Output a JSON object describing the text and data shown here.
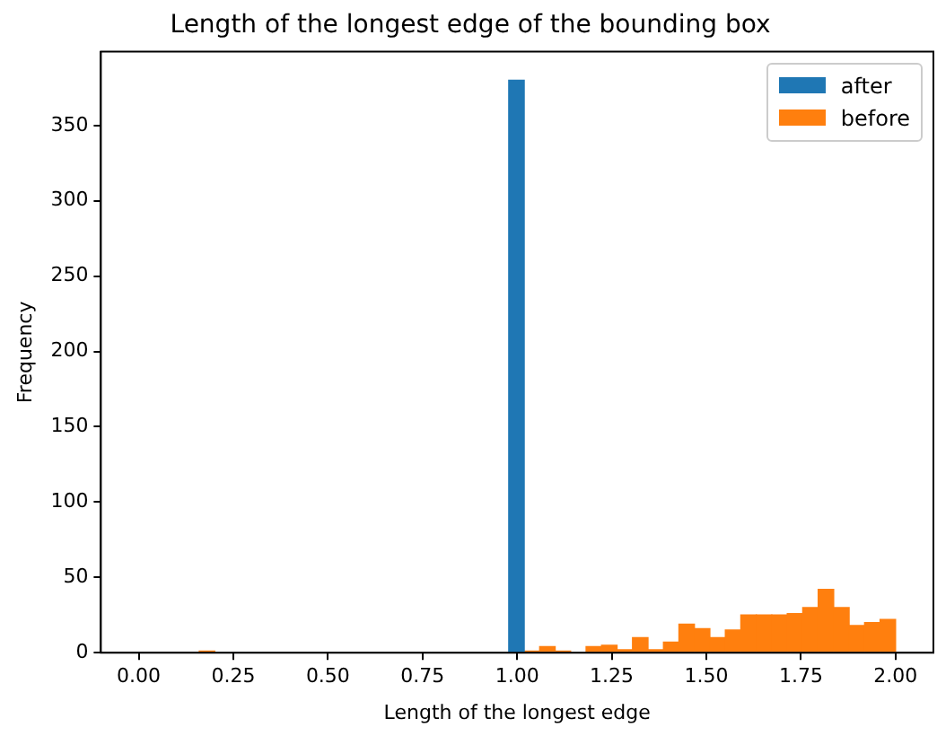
{
  "chart_data": {
    "type": "histogram",
    "title": "Length of the longest edge of the bounding box",
    "xlabel": "Length of the longest edge",
    "ylabel": "Frequency",
    "bins": [
      0.16,
      0.2009,
      0.2418,
      0.2827,
      0.3236,
      0.3644,
      0.4053,
      0.4462,
      0.4871,
      0.528,
      0.5689,
      0.6098,
      0.6507,
      0.6916,
      0.7324,
      0.7733,
      0.8142,
      0.8551,
      0.896,
      0.9369,
      0.9778,
      1.0187,
      1.0596,
      1.1004,
      1.1413,
      1.1822,
      1.2231,
      1.264,
      1.3049,
      1.3458,
      1.3867,
      1.4276,
      1.4684,
      1.5093,
      1.5502,
      1.5911,
      1.632,
      1.6729,
      1.7138,
      1.7547,
      1.7956,
      1.8364,
      1.8773,
      1.9182,
      1.9591,
      2.0
    ],
    "series": [
      {
        "name": "after",
        "color": "#1f77b4",
        "values": [
          0,
          0,
          0,
          0,
          0,
          0,
          0,
          0,
          0,
          0,
          0,
          0,
          0,
          0,
          0,
          0,
          0,
          0,
          0,
          0,
          380,
          0,
          0,
          0,
          0,
          0,
          0,
          0,
          0,
          0,
          0,
          0,
          0,
          0,
          0,
          0,
          0,
          0,
          0,
          0,
          0,
          0,
          0,
          0,
          0
        ]
      },
      {
        "name": "before",
        "color": "#ff7f0e",
        "values": [
          1,
          0,
          0,
          0,
          0,
          0,
          0,
          0,
          0,
          0,
          0,
          0,
          0,
          0,
          0,
          0,
          0,
          0,
          0,
          0,
          null,
          1,
          4,
          1,
          0,
          4,
          5,
          2,
          10,
          2,
          7,
          19,
          16,
          10,
          15,
          25,
          25,
          25,
          26,
          30,
          42,
          30,
          18,
          20,
          22
        ]
      }
    ],
    "xlim": [
      -0.1,
      2.1
    ],
    "xticks": [
      {
        "value": 0,
        "label": "0.00"
      },
      {
        "value": 0.25,
        "label": "0.25"
      },
      {
        "value": 0.5,
        "label": "0.50"
      },
      {
        "value": 0.75,
        "label": "0.75"
      },
      {
        "value": 1,
        "label": "1.00"
      },
      {
        "value": 1.25,
        "label": "1.25"
      },
      {
        "value": 1.5,
        "label": "1.50"
      },
      {
        "value": 1.75,
        "label": "1.75"
      },
      {
        "value": 2,
        "label": "2.00"
      }
    ],
    "ylim": [
      0,
      399
    ],
    "yticks": [
      0,
      50,
      100,
      150,
      200,
      250,
      300,
      350
    ],
    "grid": false,
    "legend": "top right"
  }
}
